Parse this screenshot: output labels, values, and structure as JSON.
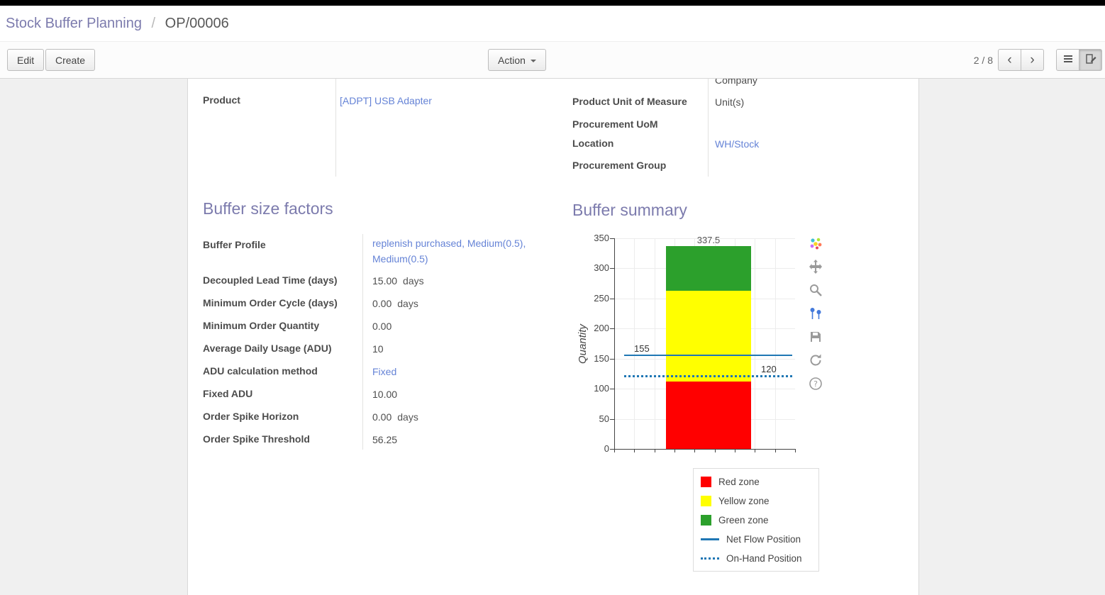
{
  "breadcrumb": {
    "parent": "Stock Buffer Planning",
    "separator": "/",
    "current": "OP/00006"
  },
  "control_panel": {
    "edit_label": "Edit",
    "create_label": "Create",
    "action_label": "Action",
    "pager": "2 / 8",
    "pager_prev": "‹",
    "pager_next": "›"
  },
  "form": {
    "left_group": {
      "rows": [
        {
          "label": "Product",
          "value": "[ADPT] USB Adapter"
        }
      ]
    },
    "right_group": {
      "partial_value": "Company",
      "rows": [
        {
          "label": "Product Unit of Measure",
          "value": "Unit(s)"
        },
        {
          "label": "Procurement UoM",
          "value": ""
        },
        {
          "label": "Location",
          "value": "WH/Stock"
        },
        {
          "label": "Procurement Group",
          "value": ""
        }
      ]
    },
    "sections": {
      "buffer_factors_title": "Buffer size factors",
      "buffer_summary_title": "Buffer summary"
    },
    "buffer_factors_rows": [
      {
        "label": "Buffer Profile",
        "value": "replenish purchased, Medium(0.5), Medium(0.5)"
      },
      {
        "label": "Decoupled Lead Time (days)",
        "value": "15.00",
        "suffix": "days"
      },
      {
        "label": "Minimum Order Cycle (days)",
        "value": "0.00",
        "suffix": "days"
      },
      {
        "label": "Minimum Order Quantity",
        "value": "0.00"
      },
      {
        "label": "Average Daily Usage (ADU)",
        "value": "10"
      },
      {
        "label": "ADU calculation method",
        "value": "Fixed"
      },
      {
        "label": "Fixed ADU",
        "value": "10.00"
      },
      {
        "label": "Order Spike Horizon",
        "value": "0.00",
        "suffix": "days"
      },
      {
        "label": "Order Spike Threshold",
        "value": "56.25"
      }
    ]
  },
  "chart_data": {
    "type": "bar",
    "stacked": true,
    "categories": [
      ""
    ],
    "series": [
      {
        "name": "Red zone",
        "value": 112.5,
        "cumulative_label": "112.5",
        "color": "#ff0000"
      },
      {
        "name": "Yellow zone",
        "value": 150,
        "cumulative_label": "262.5",
        "color": "#ffff00"
      },
      {
        "name": "Green zone",
        "value": 75,
        "cumulative_label": "337.5",
        "color": "#2ca02c"
      }
    ],
    "reference_lines": [
      {
        "name": "Net Flow Position",
        "value": 155,
        "label": "155",
        "style": "solid",
        "color": "#1f77b4",
        "label_side": "left"
      },
      {
        "name": "On-Hand Position",
        "value": 120,
        "label": "120",
        "style": "dotted",
        "color": "#1f77b4",
        "label_side": "right"
      }
    ],
    "title": "",
    "xlabel": "",
    "ylabel": "Quantity",
    "ylim": [
      0,
      350
    ],
    "yticks": [
      0,
      50,
      100,
      150,
      200,
      250,
      300,
      350
    ],
    "grid": true,
    "legend_position": "bottom-right",
    "legend": [
      {
        "label": "Red zone",
        "swatch": "square",
        "color": "#ff0000"
      },
      {
        "label": "Yellow zone",
        "swatch": "square",
        "color": "#ffff00"
      },
      {
        "label": "Green zone",
        "swatch": "square",
        "color": "#2ca02c"
      },
      {
        "label": "Net Flow Position",
        "swatch": "line",
        "color": "#1f77b4"
      },
      {
        "label": "On-Hand Position",
        "swatch": "dotted-line",
        "color": "#1f77b4"
      }
    ]
  },
  "chart_toolbar": {
    "icons": [
      {
        "name": "plotly-logo-icon",
        "icon": "logo"
      },
      {
        "name": "pan-icon",
        "icon": "pan"
      },
      {
        "name": "zoom-icon",
        "icon": "zoom"
      },
      {
        "name": "compare-hover-icon",
        "icon": "compare",
        "active": true
      },
      {
        "name": "save-image-icon",
        "icon": "save"
      },
      {
        "name": "reset-axes-icon",
        "icon": "reset"
      },
      {
        "name": "help-icon",
        "icon": "help"
      }
    ]
  },
  "colors": {
    "topbar": "#000000",
    "accent": "#7c7bad",
    "link": "#6583d6",
    "red_zone": "#ff0000",
    "yellow_zone": "#ffff00",
    "green_zone": "#2ca02c",
    "flow_line": "#1f77b4",
    "content_bg": "#f0f0f0"
  }
}
